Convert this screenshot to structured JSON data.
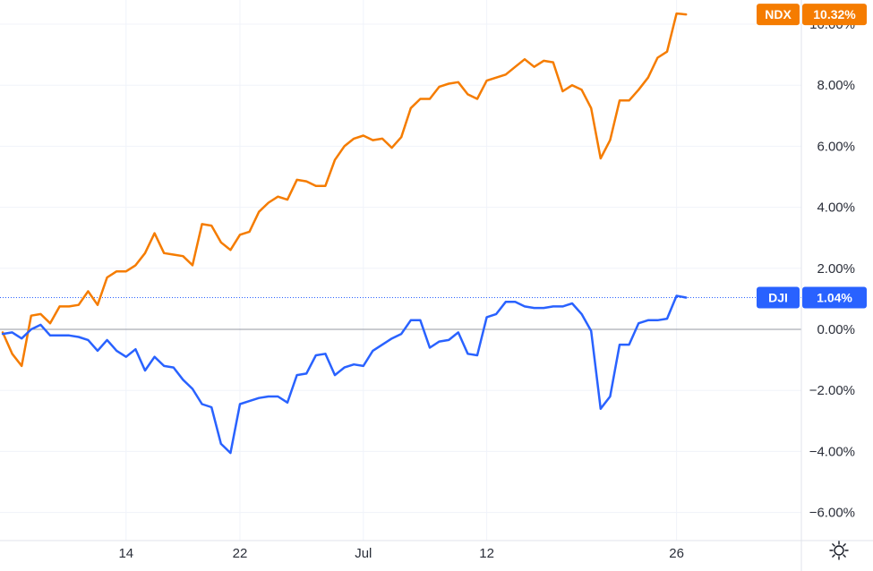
{
  "chart_data": {
    "type": "line",
    "ylim": [
      -6.0,
      10.0
    ],
    "y_ticks": [
      10.0,
      8.0,
      6.0,
      4.0,
      2.0,
      0.0,
      -2.0,
      -4.0,
      -6.0
    ],
    "y_tick_labels": [
      "10.00%",
      "8.00%",
      "6.00%",
      "4.00%",
      "2.00%",
      "0.00%",
      "−2.00%",
      "−4.00%",
      "−6.00%"
    ],
    "x_tick_labels": [
      {
        "label": "14",
        "index": 13
      },
      {
        "label": "22",
        "index": 25
      },
      {
        "label": "Jul",
        "index": 38
      },
      {
        "label": "12",
        "index": 51
      },
      {
        "label": "26",
        "index": 71
      }
    ],
    "grid": true,
    "series": [
      {
        "name": "NDX",
        "color": "#f57c00",
        "last_label": "10.32%",
        "values": [
          -0.1,
          -0.8,
          -1.2,
          0.45,
          0.5,
          0.2,
          0.75,
          0.75,
          0.8,
          1.25,
          0.8,
          1.7,
          1.9,
          1.9,
          2.1,
          2.5,
          3.15,
          2.5,
          2.45,
          2.4,
          2.1,
          3.45,
          3.4,
          2.85,
          2.6,
          3.1,
          3.2,
          3.85,
          4.15,
          4.35,
          4.25,
          4.9,
          4.85,
          4.7,
          4.7,
          5.55,
          6.0,
          6.25,
          6.35,
          6.2,
          6.25,
          5.95,
          6.3,
          7.25,
          7.55,
          7.55,
          7.95,
          8.05,
          8.1,
          7.7,
          7.55,
          8.15,
          8.25,
          8.35,
          8.6,
          8.85,
          8.6,
          8.8,
          8.75,
          7.8,
          8.0,
          7.85,
          7.25,
          5.6,
          6.2,
          7.5,
          7.5,
          7.85,
          8.25,
          8.9,
          9.1,
          10.35,
          10.32
        ]
      },
      {
        "name": "DJI",
        "color": "#2962ff",
        "last_label": "1.04%",
        "values": [
          -0.15,
          -0.1,
          -0.3,
          0.0,
          0.15,
          -0.2,
          -0.2,
          -0.2,
          -0.25,
          -0.35,
          -0.7,
          -0.35,
          -0.7,
          -0.9,
          -0.65,
          -1.35,
          -0.9,
          -1.2,
          -1.25,
          -1.65,
          -1.95,
          -2.45,
          -2.55,
          -3.75,
          -4.05,
          -2.45,
          -2.35,
          -2.25,
          -2.2,
          -2.2,
          -2.4,
          -1.5,
          -1.45,
          -0.85,
          -0.8,
          -1.5,
          -1.25,
          -1.15,
          -1.2,
          -0.7,
          -0.5,
          -0.3,
          -0.15,
          0.3,
          0.3,
          -0.6,
          -0.4,
          -0.35,
          -0.1,
          -0.8,
          -0.85,
          0.4,
          0.5,
          0.9,
          0.9,
          0.75,
          0.7,
          0.7,
          0.75,
          0.75,
          0.85,
          0.5,
          -0.05,
          -2.6,
          -2.2,
          -0.5,
          -0.5,
          0.2,
          0.3,
          0.3,
          0.35,
          1.1,
          1.04
        ]
      }
    ]
  },
  "settings_icon": "gear-icon"
}
